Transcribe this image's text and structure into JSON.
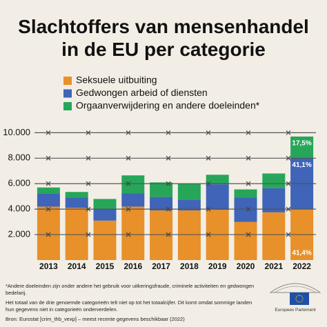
{
  "chart_data": {
    "type": "stacked-bar",
    "title": "Slachtoffers van mensenhandel in de EU per categorie",
    "categories": [
      "2013",
      "2014",
      "2015",
      "2016",
      "2017",
      "2018",
      "2019",
      "2020",
      "2021",
      "2022"
    ],
    "series": [
      {
        "name": "Seksuele uitbuiting",
        "color": "#e8902a",
        "values": [
          4200,
          4100,
          3100,
          4200,
          3900,
          3900,
          3950,
          3000,
          3750,
          4000
        ]
      },
      {
        "name": "Gedwongen arbeid of diensten",
        "color": "#3f64b8",
        "values": [
          1000,
          800,
          900,
          1050,
          1050,
          850,
          2000,
          1900,
          1900,
          4000
        ]
      },
      {
        "name": "Orgaanverwijdering en andere doeleinden*",
        "color": "#27a65a",
        "values": [
          500,
          450,
          800,
          1400,
          1150,
          1250,
          750,
          650,
          1150,
          1700
        ]
      }
    ],
    "annotations": [
      "41,4%",
      "41,1%",
      "17,5%"
    ],
    "ylim": [
      0,
      10400
    ],
    "yticks": [
      {
        "value": 2000,
        "label": "2.000"
      },
      {
        "value": 4000,
        "label": "4.000"
      },
      {
        "value": 6000,
        "label": "6.000"
      },
      {
        "value": 8000,
        "label": "8.000"
      },
      {
        "value": 10000,
        "label": "10.000"
      }
    ],
    "grid": true
  },
  "notes": [
    "*Andere doeleinden zijn onder andere het gebruik voor uitkeringsfraude, criminele activiteiten en gedwongen bedelarij.",
    "Het totaal van de drie genoemde categorieën telt niet op tot het totaalcijfer. Dit komt omdat sommige landen hun gegevens niet in categorieën onderverdelen."
  ],
  "source": "Bron: Eurostat [crim_thb_vexp] – meest recente gegevens beschikbaar (2022)",
  "logo": "Europees Parlement"
}
